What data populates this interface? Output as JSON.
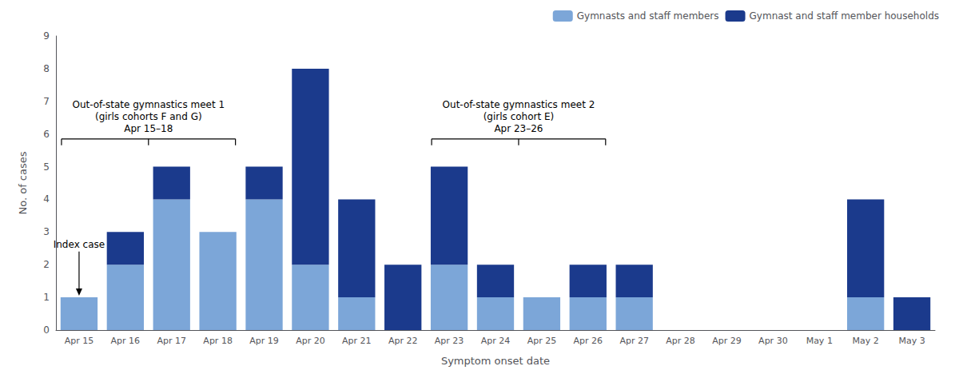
{
  "chart_data": {
    "type": "bar",
    "stacked": true,
    "xlabel": "Symptom onset date",
    "ylabel": "No. of cases",
    "categories": [
      "Apr 15",
      "Apr 16",
      "Apr 17",
      "Apr 18",
      "Apr 19",
      "Apr 20",
      "Apr 21",
      "Apr 22",
      "Apr 23",
      "Apr 24",
      "Apr 25",
      "Apr 26",
      "Apr 27",
      "Apr 28",
      "Apr 29",
      "Apr 30",
      "May 1",
      "May 2",
      "May 3"
    ],
    "series": [
      {
        "name": "Gymnasts and staff members",
        "color": "#7CA6D8",
        "values": [
          1,
          2,
          4,
          3,
          4,
          2,
          1,
          0,
          2,
          1,
          1,
          1,
          1,
          0,
          0,
          0,
          0,
          1,
          0
        ]
      },
      {
        "name": "Gymnast and staff member households",
        "color": "#1B3A8C",
        "values": [
          0,
          1,
          1,
          0,
          1,
          6,
          3,
          2,
          3,
          1,
          0,
          1,
          1,
          0,
          0,
          0,
          0,
          3,
          1
        ]
      }
    ],
    "ylim": [
      0,
      9
    ],
    "yticks": [
      0,
      1,
      2,
      3,
      4,
      5,
      6,
      7,
      8,
      9
    ],
    "grid": false,
    "legend": "upper right",
    "annotations": [
      {
        "text": [
          "Out-of-state gymnastics meet 1",
          "(girls cohorts F and G)",
          "Apr 15–18"
        ],
        "x_start": "Apr 15",
        "x_end": "Apr 18"
      },
      {
        "text": [
          "Out-of-state gymnastics meet 2",
          "(girls cohort E)",
          "Apr 23–26"
        ],
        "x_start": "Apr 23",
        "x_end": "Apr 26"
      },
      {
        "text": "Index case",
        "x": "Apr 15",
        "y": 1.05
      }
    ]
  }
}
